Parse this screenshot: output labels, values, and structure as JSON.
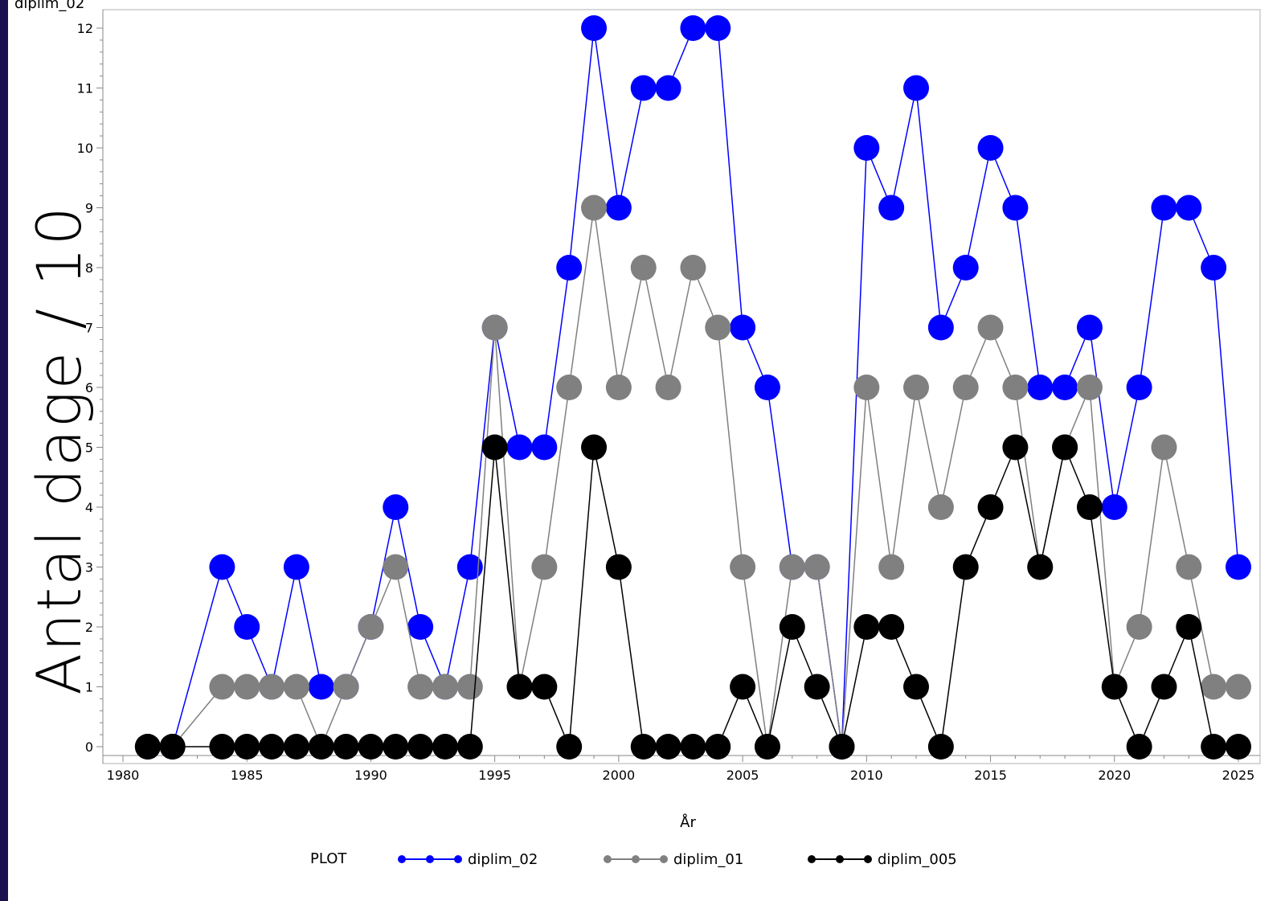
{
  "chart_data": {
    "type": "line",
    "title": "diplim_02",
    "xlabel": "År",
    "ylabel": "Antal dage / 10",
    "xlim": [
      1980,
      2025
    ],
    "ylim": [
      0,
      12
    ],
    "x_ticks": [
      1980,
      1985,
      1990,
      1995,
      2000,
      2005,
      2010,
      2015,
      2020,
      2025
    ],
    "y_ticks": [
      0,
      1,
      2,
      3,
      4,
      5,
      6,
      7,
      8,
      9,
      10,
      11,
      12
    ],
    "grid": false,
    "legend_position": "bottom",
    "legend_title": "PLOT",
    "x": [
      1981,
      1982,
      1984,
      1985,
      1986,
      1987,
      1988,
      1989,
      1990,
      1991,
      1992,
      1993,
      1994,
      1995,
      1996,
      1997,
      1998,
      1999,
      2000,
      2001,
      2002,
      2003,
      2004,
      2005,
      2006,
      2007,
      2008,
      2009,
      2010,
      2011,
      2012,
      2013,
      2014,
      2015,
      2016,
      2017,
      2018,
      2019,
      2020,
      2021,
      2022,
      2023,
      2024,
      2025
    ],
    "series": [
      {
        "name": "diplim_02",
        "color": "#0000ff",
        "values": [
          0,
          0,
          3,
          2,
          1,
          3,
          1,
          1,
          2,
          4,
          2,
          1,
          3,
          7,
          5,
          5,
          8,
          12,
          9,
          11,
          11,
          12,
          12,
          7,
          6,
          3,
          3,
          0,
          10,
          9,
          11,
          7,
          8,
          10,
          9,
          6,
          6,
          7,
          4,
          6,
          9,
          9,
          8,
          3
        ]
      },
      {
        "name": "diplim_01",
        "color": "#808080",
        "values": [
          0,
          0,
          1,
          1,
          1,
          1,
          0,
          1,
          2,
          3,
          1,
          1,
          1,
          7,
          1,
          3,
          6,
          9,
          6,
          8,
          6,
          8,
          7,
          3,
          0,
          3,
          3,
          0,
          6,
          3,
          6,
          4,
          6,
          7,
          6,
          3,
          5,
          6,
          1,
          2,
          5,
          3,
          1,
          1
        ]
      },
      {
        "name": "diplim_005",
        "color": "#000000",
        "values": [
          0,
          0,
          0,
          0,
          0,
          0,
          0,
          0,
          0,
          0,
          0,
          0,
          0,
          5,
          1,
          1,
          0,
          5,
          3,
          0,
          0,
          0,
          0,
          1,
          0,
          2,
          1,
          0,
          2,
          2,
          1,
          0,
          3,
          4,
          5,
          3,
          5,
          4,
          1,
          0,
          1,
          2,
          0,
          0
        ]
      }
    ]
  }
}
